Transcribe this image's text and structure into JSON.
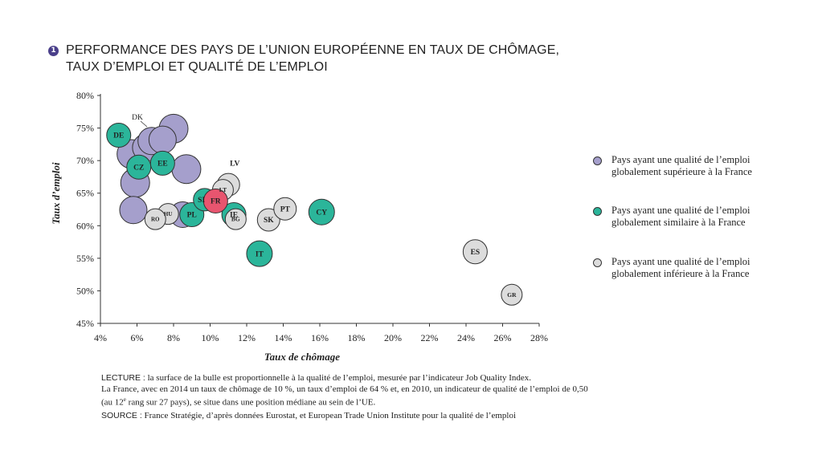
{
  "title": {
    "number": "1",
    "line1": "PERFORMANCE DES PAYS DE L’UNION EUROPÉENNE EN TAUX DE CHÔMAGE,",
    "line2": "TAUX D’EMPLOI ET QUALITÉ DE L’EMPLOI"
  },
  "legend": {
    "items": [
      {
        "category": "superieure",
        "line1": "Pays ayant une qualité de l’emploi",
        "line2": "globalement supérieure à la France"
      },
      {
        "category": "similaire",
        "line1": "Pays ayant une qualité de l’emploi",
        "line2": "globalement similaire à la France"
      },
      {
        "category": "inferieure",
        "line1": "Pays ayant une qualité de l’emploi",
        "line2": "globalement inférieure à la France"
      }
    ]
  },
  "colors": {
    "superieure": "#a59fcc",
    "similaire": "#2bb59a",
    "inferieure": "#dcdcdc",
    "france": "#e8556f",
    "outline": "#333333",
    "axis": "#333333"
  },
  "notes": {
    "lecture_label": "LECTURE :",
    "lecture_text": " la surface de la bulle est proportionnelle à la qualité de l’emploi, mesurée par l’indicateur Job Quality Index.",
    "line2": "La France, avec en 2014  un taux de chômage de 10 %, un taux d’emploi  de 64 % et, en 2010, un indicateur de qualité de l’emploi de 0,50",
    "line3_a": "(au 12",
    "line3_sup": "e",
    "line3_b": " rang sur 27 pays), se situe dans une position médiane au sein de l’UE.",
    "source_label": "SOURCE :",
    "source_text": " France Stratégie, d’après données Eurostat, et European Trade Union Institute pour la qualité de l’emploi"
  },
  "chart_data": {
    "type": "scatter",
    "xlabel": "Taux de chômage",
    "ylabel": "Taux d’emploi",
    "xlim": [
      4,
      28
    ],
    "ylim": [
      45,
      80
    ],
    "xticks": [
      4,
      6,
      8,
      10,
      12,
      14,
      16,
      18,
      20,
      22,
      24,
      26,
      28
    ],
    "xtick_labels": [
      "4%",
      "6%",
      "8%",
      "10%",
      "12%",
      "14%",
      "16%",
      "18%",
      "20%",
      "22%",
      "24%",
      "26%",
      "28%"
    ],
    "yticks": [
      45,
      50,
      55,
      60,
      65,
      70,
      75,
      80
    ],
    "ytick_labels": [
      "45%",
      "50%",
      "55%",
      "60%",
      "65%",
      "70%",
      "75%",
      "80%"
    ],
    "points": [
      {
        "label": "",
        "x": 5.7,
        "y": 71.0,
        "r": 18,
        "category": "superieure"
      },
      {
        "label": "",
        "x": 6.5,
        "y": 72.0,
        "r": 17,
        "category": "superieure"
      },
      {
        "label": "",
        "x": 6.8,
        "y": 73.0,
        "r": 17,
        "category": "superieure"
      },
      {
        "label": "",
        "x": 7.4,
        "y": 73.2,
        "r": 17,
        "category": "superieure"
      },
      {
        "label": "",
        "x": 8.0,
        "y": 74.9,
        "r": 18,
        "category": "superieure"
      },
      {
        "label": "",
        "x": 8.7,
        "y": 68.7,
        "r": 18,
        "category": "superieure"
      },
      {
        "label": "",
        "x": 5.9,
        "y": 66.6,
        "r": 18,
        "category": "superieure"
      },
      {
        "label": "",
        "x": 5.8,
        "y": 62.4,
        "r": 17,
        "category": "superieure"
      },
      {
        "label": "",
        "x": 8.5,
        "y": 61.7,
        "r": 16,
        "category": "superieure"
      },
      {
        "label": "DE",
        "x": 5.0,
        "y": 73.9,
        "r": 15,
        "category": "similaire"
      },
      {
        "label": "CZ",
        "x": 6.1,
        "y": 69.0,
        "r": 15,
        "category": "similaire"
      },
      {
        "label": "EE",
        "x": 7.4,
        "y": 69.6,
        "r": 15,
        "category": "similaire"
      },
      {
        "label": "SI",
        "x": 9.7,
        "y": 64.0,
        "r": 14,
        "category": "similaire"
      },
      {
        "label": "PL",
        "x": 9.0,
        "y": 61.7,
        "r": 15,
        "category": "similaire"
      },
      {
        "label": "IE",
        "x": 11.3,
        "y": 61.7,
        "r": 15,
        "category": "similaire"
      },
      {
        "label": "CY",
        "x": 16.1,
        "y": 62.1,
        "r": 16,
        "category": "similaire"
      },
      {
        "label": "IT",
        "x": 12.7,
        "y": 55.7,
        "r": 16,
        "category": "similaire"
      },
      {
        "label": "HU",
        "x": 7.7,
        "y": 61.8,
        "r": 13,
        "category": "inferieure"
      },
      {
        "label": "RO",
        "x": 7.0,
        "y": 61.0,
        "r": 13,
        "category": "inferieure"
      },
      {
        "label": "LV",
        "x": 11.0,
        "y": 66.3,
        "r": 14,
        "category": "inferieure"
      },
      {
        "label": "LT",
        "x": 10.7,
        "y": 65.5,
        "r": 13,
        "category": "inferieure"
      },
      {
        "label": "BG",
        "x": 11.4,
        "y": 61.0,
        "r": 13,
        "category": "inferieure"
      },
      {
        "label": "SK",
        "x": 13.2,
        "y": 60.9,
        "r": 14,
        "category": "inferieure"
      },
      {
        "label": "PT",
        "x": 14.1,
        "y": 62.6,
        "r": 14,
        "category": "inferieure"
      },
      {
        "label": "ES",
        "x": 24.5,
        "y": 56.0,
        "r": 15,
        "category": "inferieure"
      },
      {
        "label": "GR",
        "x": 26.5,
        "y": 49.4,
        "r": 13,
        "category": "inferieure"
      },
      {
        "label": "FR",
        "x": 10.3,
        "y": 63.8,
        "r": 15,
        "category": "france"
      }
    ]
  }
}
